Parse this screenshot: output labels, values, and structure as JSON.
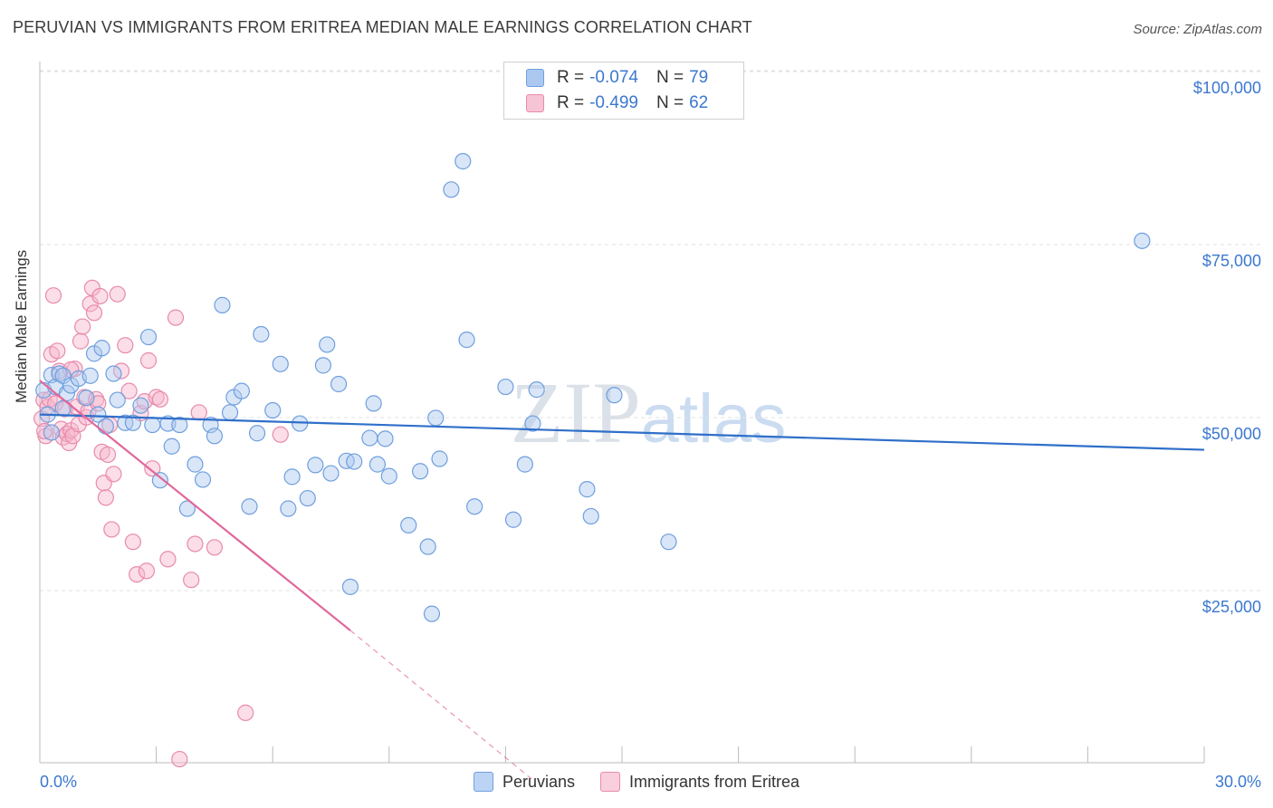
{
  "header": {
    "title": "PERUVIAN VS IMMIGRANTS FROM ERITREA MEDIAN MALE EARNINGS CORRELATION CHART",
    "source": "Source: ZipAtlas.com"
  },
  "watermark": "ZIPatlas",
  "legend": {
    "series": [
      {
        "r_label": "R =",
        "r_value": "-0.074",
        "n_label": "N =",
        "n_value": "79"
      },
      {
        "r_label": "R =",
        "r_value": "-0.499",
        "n_label": "N =",
        "n_value": "62"
      }
    ]
  },
  "colors": {
    "blue_fill": "#aac8f0",
    "blue_stroke": "#6f9fde",
    "blue_line": "#2f6fc9",
    "pink_fill": "#f6b6cc",
    "pink_stroke": "#e88aac",
    "pink_line": "#e0679a",
    "tick_text": "#3b78d0",
    "grid": "#e0e0e0"
  },
  "chart_data": {
    "type": "scatter",
    "title": "PERUVIAN VS IMMIGRANTS FROM ERITREA MEDIAN MALE EARNINGS CORRELATION CHART",
    "xlabel": "",
    "ylabel": "Median Male Earnings",
    "xlim": [
      0,
      30
    ],
    "ylim": [
      0,
      105000
    ],
    "x_tick_labels": [
      "0.0%",
      "30.0%"
    ],
    "y_ticks": [
      25000,
      50000,
      75000,
      100000
    ],
    "y_tick_labels": [
      "$25,000",
      "$50,000",
      "$75,000",
      "$100,000"
    ],
    "legend_position": "top-center",
    "series": [
      {
        "name": "Peruvians",
        "R": -0.074,
        "N": 79,
        "trend": {
          "x": [
            0,
            30
          ],
          "y": [
            52800,
            47700
          ]
        },
        "points": [
          [
            0.1,
            56300
          ],
          [
            0.2,
            52800
          ],
          [
            0.3,
            58500
          ],
          [
            0.4,
            56800
          ],
          [
            0.5,
            58700
          ],
          [
            0.6,
            58400
          ],
          [
            0.7,
            55900
          ],
          [
            0.8,
            57000
          ],
          [
            1.0,
            58000
          ],
          [
            1.2,
            55200
          ],
          [
            1.4,
            61600
          ],
          [
            1.5,
            52800
          ],
          [
            1.6,
            62400
          ],
          [
            1.7,
            51100
          ],
          [
            1.9,
            58700
          ],
          [
            2.0,
            54900
          ],
          [
            2.2,
            51600
          ],
          [
            2.4,
            51600
          ],
          [
            2.6,
            54100
          ],
          [
            2.8,
            64000
          ],
          [
            2.9,
            51300
          ],
          [
            3.1,
            43300
          ],
          [
            3.3,
            51500
          ],
          [
            3.4,
            48200
          ],
          [
            3.6,
            51300
          ],
          [
            3.8,
            39200
          ],
          [
            4.0,
            45600
          ],
          [
            4.2,
            43400
          ],
          [
            4.4,
            51300
          ],
          [
            4.5,
            49700
          ],
          [
            4.7,
            68600
          ],
          [
            4.9,
            53100
          ],
          [
            5.0,
            55300
          ],
          [
            5.2,
            56200
          ],
          [
            5.4,
            39500
          ],
          [
            5.6,
            50100
          ],
          [
            5.7,
            64400
          ],
          [
            6.0,
            53400
          ],
          [
            6.2,
            60100
          ],
          [
            6.4,
            39200
          ],
          [
            6.5,
            43800
          ],
          [
            6.7,
            51500
          ],
          [
            6.9,
            40700
          ],
          [
            7.1,
            45500
          ],
          [
            7.3,
            59900
          ],
          [
            7.4,
            62900
          ],
          [
            7.5,
            44300
          ],
          [
            7.7,
            57200
          ],
          [
            7.9,
            46100
          ],
          [
            8.1,
            46000
          ],
          [
            8.5,
            49400
          ],
          [
            8.6,
            54400
          ],
          [
            8.7,
            45600
          ],
          [
            8.9,
            49300
          ],
          [
            9.0,
            43900
          ],
          [
            8.0,
            27900
          ],
          [
            9.5,
            36800
          ],
          [
            9.8,
            44600
          ],
          [
            10.0,
            33700
          ],
          [
            10.2,
            52300
          ],
          [
            10.3,
            46400
          ],
          [
            10.1,
            24000
          ],
          [
            10.6,
            85300
          ],
          [
            11.0,
            63600
          ],
          [
            11.2,
            39500
          ],
          [
            10.9,
            89400
          ],
          [
            12.0,
            56800
          ],
          [
            12.2,
            37600
          ],
          [
            12.5,
            45600
          ],
          [
            12.7,
            51500
          ],
          [
            12.8,
            56400
          ],
          [
            14.1,
            42000
          ],
          [
            14.2,
            38100
          ],
          [
            14.8,
            55600
          ],
          [
            16.2,
            34400
          ],
          [
            28.4,
            77900
          ],
          [
            0.3,
            50200
          ],
          [
            1.3,
            58400
          ],
          [
            0.6,
            53700
          ]
        ]
      },
      {
        "name": "Immigrants from Eritrea",
        "R": -0.499,
        "N": 62,
        "trend": {
          "x": [
            0,
            8
          ],
          "y": [
            57700,
            21600
          ]
        },
        "trend_dashed": {
          "x": [
            8,
            12.7
          ],
          "y": [
            21600,
            0
          ]
        },
        "points": [
          [
            0.05,
            52200
          ],
          [
            0.1,
            54900
          ],
          [
            0.15,
            49700
          ],
          [
            0.2,
            53900
          ],
          [
            0.25,
            55000
          ],
          [
            0.3,
            61500
          ],
          [
            0.35,
            70000
          ],
          [
            0.4,
            54400
          ],
          [
            0.45,
            62000
          ],
          [
            0.5,
            59100
          ],
          [
            0.55,
            50700
          ],
          [
            0.6,
            49500
          ],
          [
            0.65,
            53600
          ],
          [
            0.7,
            50000
          ],
          [
            0.75,
            48700
          ],
          [
            0.8,
            50500
          ],
          [
            0.85,
            49700
          ],
          [
            0.9,
            59400
          ],
          [
            0.95,
            53900
          ],
          [
            1.0,
            51400
          ],
          [
            1.05,
            63400
          ],
          [
            1.1,
            65500
          ],
          [
            1.15,
            55300
          ],
          [
            1.2,
            52400
          ],
          [
            1.25,
            53300
          ],
          [
            1.3,
            68800
          ],
          [
            1.35,
            71100
          ],
          [
            1.4,
            67500
          ],
          [
            1.45,
            55000
          ],
          [
            1.5,
            54400
          ],
          [
            1.55,
            69900
          ],
          [
            1.6,
            47400
          ],
          [
            1.65,
            42900
          ],
          [
            1.7,
            40800
          ],
          [
            1.75,
            47000
          ],
          [
            1.8,
            51300
          ],
          [
            1.85,
            36200
          ],
          [
            1.9,
            44200
          ],
          [
            2.0,
            70200
          ],
          [
            2.1,
            59100
          ],
          [
            2.2,
            62800
          ],
          [
            2.3,
            56200
          ],
          [
            2.4,
            34400
          ],
          [
            2.5,
            29700
          ],
          [
            2.6,
            53000
          ],
          [
            2.7,
            54700
          ],
          [
            2.75,
            30200
          ],
          [
            2.8,
            60600
          ],
          [
            2.9,
            45000
          ],
          [
            3.0,
            55300
          ],
          [
            3.1,
            55000
          ],
          [
            3.3,
            31900
          ],
          [
            3.5,
            66800
          ],
          [
            3.6,
            3000
          ],
          [
            3.9,
            28900
          ],
          [
            4.0,
            34100
          ],
          [
            4.1,
            53100
          ],
          [
            4.5,
            33600
          ],
          [
            5.3,
            9700
          ],
          [
            6.2,
            49900
          ],
          [
            0.12,
            50400
          ],
          [
            0.8,
            59300
          ]
        ]
      }
    ]
  },
  "bottom_legend": {
    "items": [
      "Peruvians",
      "Immigrants from Eritrea"
    ]
  }
}
